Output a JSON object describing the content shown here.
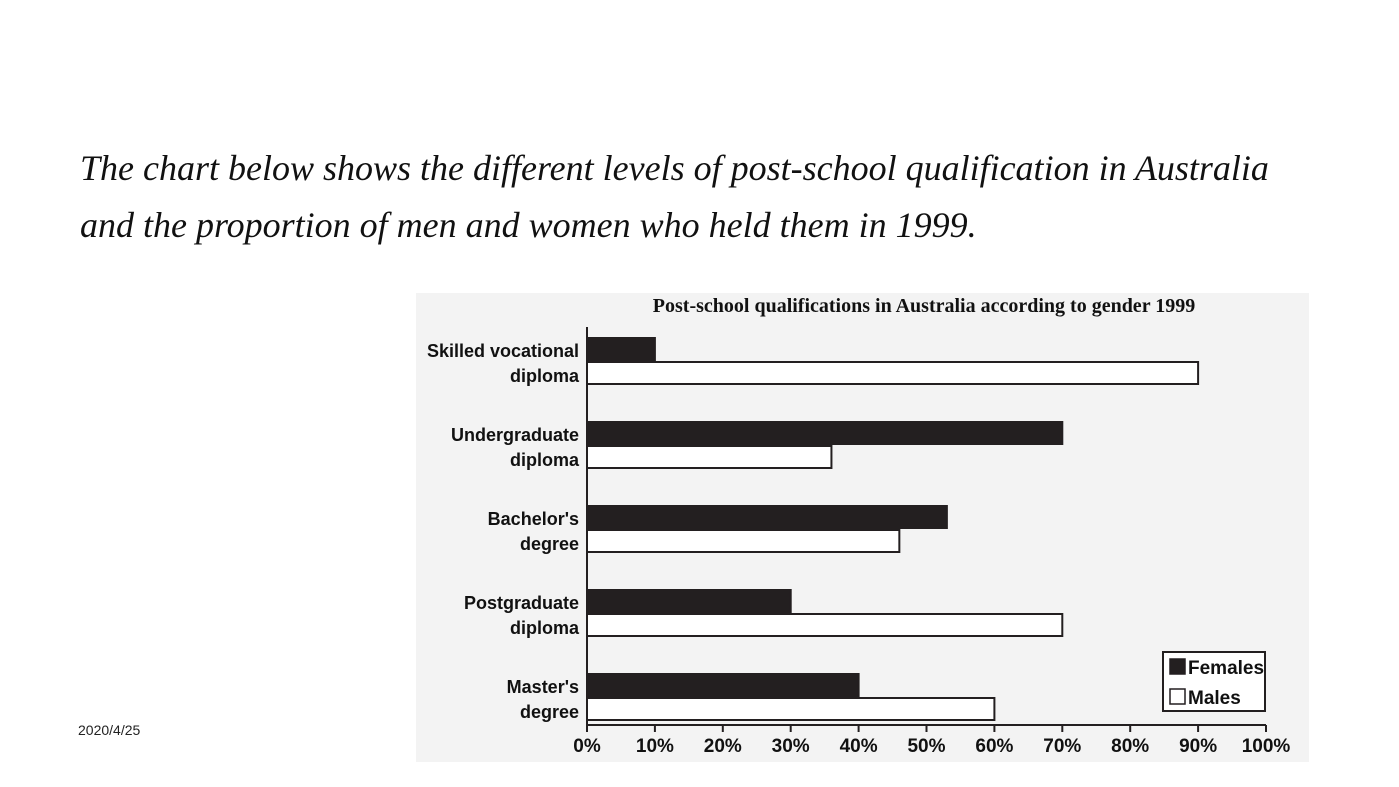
{
  "slide": {
    "intro_line_1": "The chart below shows the different levels of post-school qualification in Australia",
    "intro_line_2": "and the proportion of men and women who held them in 1999.",
    "date": "2020/4/25"
  },
  "chart_data": {
    "type": "bar",
    "orientation": "horizontal",
    "title": "Post-school qualifications in Australia according to gender 1999",
    "categories": [
      [
        "Skilled vocational",
        "diploma"
      ],
      [
        "Undergraduate",
        "diploma"
      ],
      [
        "Bachelor's",
        "degree"
      ],
      [
        "Postgraduate",
        "diploma"
      ],
      [
        "Master's",
        "degree"
      ]
    ],
    "series": [
      {
        "name": "Females",
        "values": [
          10,
          70,
          53,
          30,
          40
        ],
        "color": "#231f20"
      },
      {
        "name": "Males",
        "values": [
          90,
          36,
          46,
          70,
          60
        ],
        "color": "#ffffff"
      }
    ],
    "xlim": [
      0,
      100
    ],
    "x_ticks": [
      "0%",
      "10%",
      "20%",
      "30%",
      "40%",
      "50%",
      "60%",
      "70%",
      "80%",
      "90%",
      "100%"
    ],
    "xlabel": "",
    "ylabel": "",
    "legend_position": "bottom-right",
    "grid": false,
    "background_color": "#f3f3f3"
  }
}
